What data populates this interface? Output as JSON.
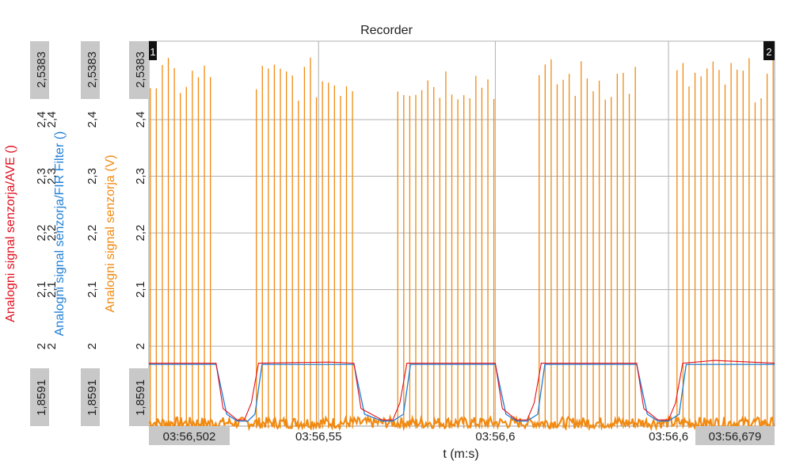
{
  "chart_data": {
    "type": "line",
    "title": "Recorder",
    "xlabel": "t (m:s)",
    "x_start_label": "03:56,502",
    "x_end_label": "03:56,679",
    "x_ticks": [
      "03:56,55",
      "03:56,6",
      "03:56,6"
    ],
    "x_range_s": [
      0,
      0.177
    ],
    "y_axes": [
      {
        "label": "Analogni signal senzorja/AVE ()",
        "color": "#e0101e",
        "min_label": "1,8591",
        "max_label": "2,5383",
        "ticks": [
          "2",
          "2,1",
          "2,2",
          "2,3",
          "2,4"
        ]
      },
      {
        "label": "Analogni signal senzorja/FIR Filter ()",
        "color": "#1f7fd6",
        "min_label": "1,8591",
        "max_label": "2,5383",
        "ticks": [
          "2",
          "2,1",
          "2,2",
          "2,3",
          "2,4"
        ]
      },
      {
        "label": "Analogni signal senzorja (V)",
        "color": "#f08a12",
        "min_label": "1,8591",
        "max_label": "2,5383",
        "ticks": [
          "2",
          "2,1",
          "2,2",
          "2,3",
          "2,4"
        ]
      }
    ],
    "ylim": [
      1.8591,
      2.5383
    ],
    "grid": true,
    "cursor_labels": [
      "1",
      "2"
    ],
    "series": [
      {
        "name": "Analogni signal senzorja/AVE ()",
        "color": "#e0101e",
        "points": [
          [
            0,
            1.97
          ],
          [
            0.019,
            1.97
          ],
          [
            0.021,
            1.89
          ],
          [
            0.025,
            1.87
          ],
          [
            0.027,
            1.87
          ],
          [
            0.029,
            1.9
          ],
          [
            0.031,
            1.97
          ],
          [
            0.051,
            1.972
          ],
          [
            0.058,
            1.97
          ],
          [
            0.06,
            1.89
          ],
          [
            0.066,
            1.87
          ],
          [
            0.069,
            1.87
          ],
          [
            0.071,
            1.9
          ],
          [
            0.073,
            1.97
          ],
          [
            0.098,
            1.97
          ],
          [
            0.1,
            1.89
          ],
          [
            0.104,
            1.87
          ],
          [
            0.107,
            1.87
          ],
          [
            0.109,
            1.9
          ],
          [
            0.111,
            1.97
          ],
          [
            0.138,
            1.97
          ],
          [
            0.14,
            1.89
          ],
          [
            0.144,
            1.87
          ],
          [
            0.147,
            1.87
          ],
          [
            0.149,
            1.9
          ],
          [
            0.151,
            1.97
          ],
          [
            0.16,
            1.975
          ],
          [
            0.177,
            1.97
          ]
        ]
      },
      {
        "name": "Analogni signal senzorja/FIR Filter ()",
        "color": "#1f7fd6",
        "points": [
          [
            0,
            1.968
          ],
          [
            0.019,
            1.968
          ],
          [
            0.022,
            1.88
          ],
          [
            0.025,
            1.868
          ],
          [
            0.028,
            1.868
          ],
          [
            0.03,
            1.88
          ],
          [
            0.032,
            1.968
          ],
          [
            0.058,
            1.968
          ],
          [
            0.061,
            1.88
          ],
          [
            0.066,
            1.868
          ],
          [
            0.069,
            1.868
          ],
          [
            0.072,
            1.88
          ],
          [
            0.074,
            1.968
          ],
          [
            0.098,
            1.968
          ],
          [
            0.101,
            1.88
          ],
          [
            0.104,
            1.868
          ],
          [
            0.107,
            1.868
          ],
          [
            0.11,
            1.88
          ],
          [
            0.112,
            1.968
          ],
          [
            0.138,
            1.968
          ],
          [
            0.141,
            1.88
          ],
          [
            0.144,
            1.868
          ],
          [
            0.147,
            1.868
          ],
          [
            0.15,
            1.88
          ],
          [
            0.152,
            1.968
          ],
          [
            0.177,
            1.968
          ]
        ]
      },
      {
        "name": "Analogni signal senzorja (V)",
        "color": "#f08a12",
        "bursts": [
          [
            0.0,
            0.019
          ],
          [
            0.03,
            0.058
          ],
          [
            0.07,
            0.098
          ],
          [
            0.11,
            0.138
          ],
          [
            0.149,
            0.177
          ]
        ],
        "spike_period": 0.0017,
        "spike_peak": 2.51,
        "spike_min": 2.43,
        "baseline": 1.865,
        "baseline_noise": 0.01
      }
    ]
  }
}
